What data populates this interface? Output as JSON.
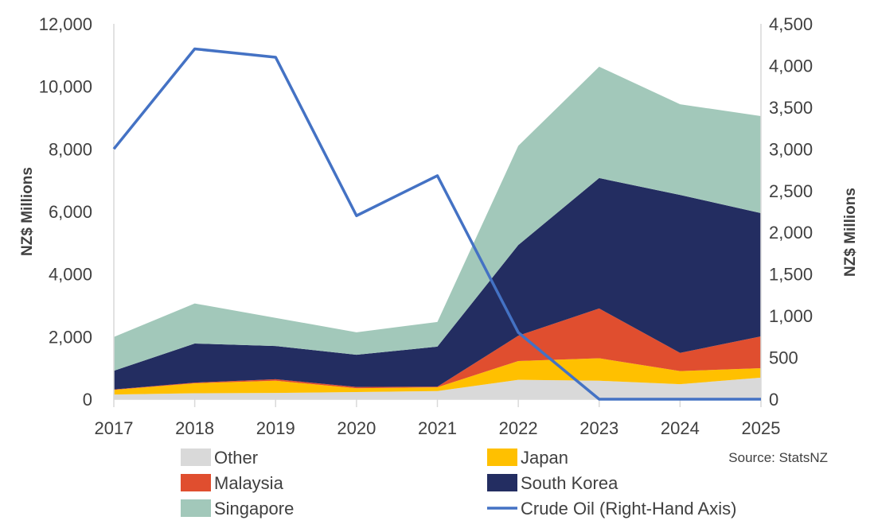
{
  "chart_data": {
    "type": "area",
    "stacked": true,
    "categories": [
      "2017",
      "2018",
      "2019",
      "2020",
      "2021",
      "2022",
      "2023",
      "2024",
      "2025"
    ],
    "series": [
      {
        "name": "Other",
        "axis": "left",
        "type": "area",
        "color": "#d9d9d9",
        "values": [
          150,
          190,
          200,
          230,
          260,
          620,
          590,
          480,
          690
        ]
      },
      {
        "name": "Japan",
        "axis": "left",
        "type": "area",
        "color": "#ffc000",
        "values": [
          150,
          320,
          390,
          120,
          120,
          600,
          720,
          420,
          300
        ]
      },
      {
        "name": "Malaysia",
        "axis": "left",
        "type": "area",
        "color": "#e04e2f",
        "values": [
          10,
          20,
          50,
          40,
          20,
          810,
          1590,
          580,
          1020
        ]
      },
      {
        "name": "South Korea",
        "axis": "left",
        "type": "area",
        "color": "#232d61",
        "values": [
          600,
          1250,
          1060,
          1030,
          1280,
          2900,
          4170,
          5050,
          3940
        ]
      },
      {
        "name": "Singapore",
        "axis": "left",
        "type": "area",
        "color": "#a2c8ba",
        "values": [
          1080,
          1280,
          900,
          720,
          790,
          3170,
          3560,
          2900,
          3100
        ]
      },
      {
        "name": "Crude Oil (Right-Hand Axis)",
        "axis": "right",
        "type": "line",
        "color": "#4472c4",
        "values": [
          3000,
          4200,
          4100,
          2200,
          2680,
          800,
          0,
          0,
          0
        ]
      }
    ],
    "left_axis": {
      "label": "NZ$ Millions",
      "range": [
        0,
        12000
      ],
      "ticks": [
        "0",
        "2,000",
        "4,000",
        "6,000",
        "8,000",
        "10,000",
        "12,000"
      ]
    },
    "right_axis": {
      "label": "NZ$ Millions",
      "range": [
        0,
        4500
      ],
      "ticks": [
        "0",
        "500",
        "1,000",
        "1,500",
        "2,000",
        "2,500",
        "3,000",
        "3,500",
        "4,000",
        "4,500"
      ]
    },
    "grid": false,
    "legend_placement": "bottom",
    "source": "Source: StatsNZ"
  }
}
